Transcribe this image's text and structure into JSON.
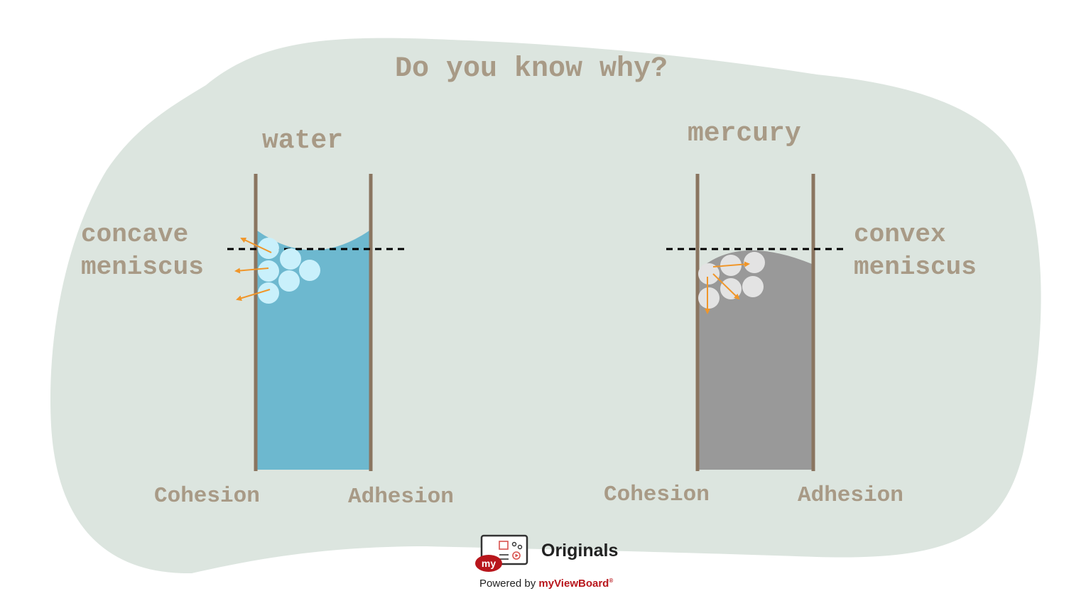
{
  "title": "Do you know why?",
  "water": {
    "name": "water",
    "meniscus_line1": "concave",
    "meniscus_line2": "meniscus",
    "left_label": "Cohesion",
    "right_label": "Adhesion"
  },
  "mercury": {
    "name": "mercury",
    "meniscus_line1": "convex",
    "meniscus_line2": "meniscus",
    "left_label": "Cohesion",
    "right_label": "Adhesion"
  },
  "footer": {
    "logo_badge": "my",
    "originals": "Originals",
    "powered_by": "Powered by",
    "brand": "myViewBoard",
    "brand_mark": "®"
  },
  "colors": {
    "blob": "#dce5df",
    "text": "#a89a86",
    "glass": "#8a7560",
    "water": "#6db8cf",
    "water_molecule": "#c9f0fb",
    "mercury": "#999999",
    "mercury_molecule": "#e3e3e3",
    "force_arrow": "#f0962a",
    "brand_red": "#b8161c"
  }
}
